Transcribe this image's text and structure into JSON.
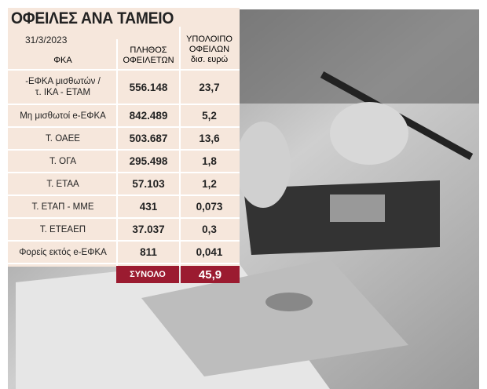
{
  "table": {
    "title": "ΟΦΕΙΛΕΣ ΑΝΑ ΤΑΜΕΙΟ",
    "date": "31/3/2023",
    "headers": [
      "ΦΚΑ",
      "ΠΛΗΘΟΣ\nΟΦΕΙΛΕΤΩΝ",
      "ΥΠΟΛΟΙΠΟ\nΟΦΕΙΛΩΝ\nδισ. ευρώ"
    ],
    "rows": [
      [
        "-ΕΦΚΑ μισθωτών /\nτ. ΙΚΑ - ΕΤΑΜ",
        "556.148",
        "23,7"
      ],
      [
        "Μη μισθωτοί e-ΕΦΚΑ",
        "842.489",
        "5,2"
      ],
      [
        "Τ. ΟΑΕΕ",
        "503.687",
        "13,6"
      ],
      [
        "Τ. ΟΓΑ",
        "295.498",
        "1,8"
      ],
      [
        "Τ. ΕΤΑΑ",
        "57.103",
        "1,2"
      ],
      [
        "Τ. ΕΤΑΠ - ΜΜΕ",
        "431",
        "0,073"
      ],
      [
        "Τ. ΕΤΕΑΕΠ",
        "37.037",
        "0,3"
      ],
      [
        "Φορείς εκτός e-ΕΦΚΑ",
        "811",
        "0,041"
      ]
    ],
    "total": [
      "ΣΥΝΟΛΟ",
      "45,9"
    ]
  }
}
